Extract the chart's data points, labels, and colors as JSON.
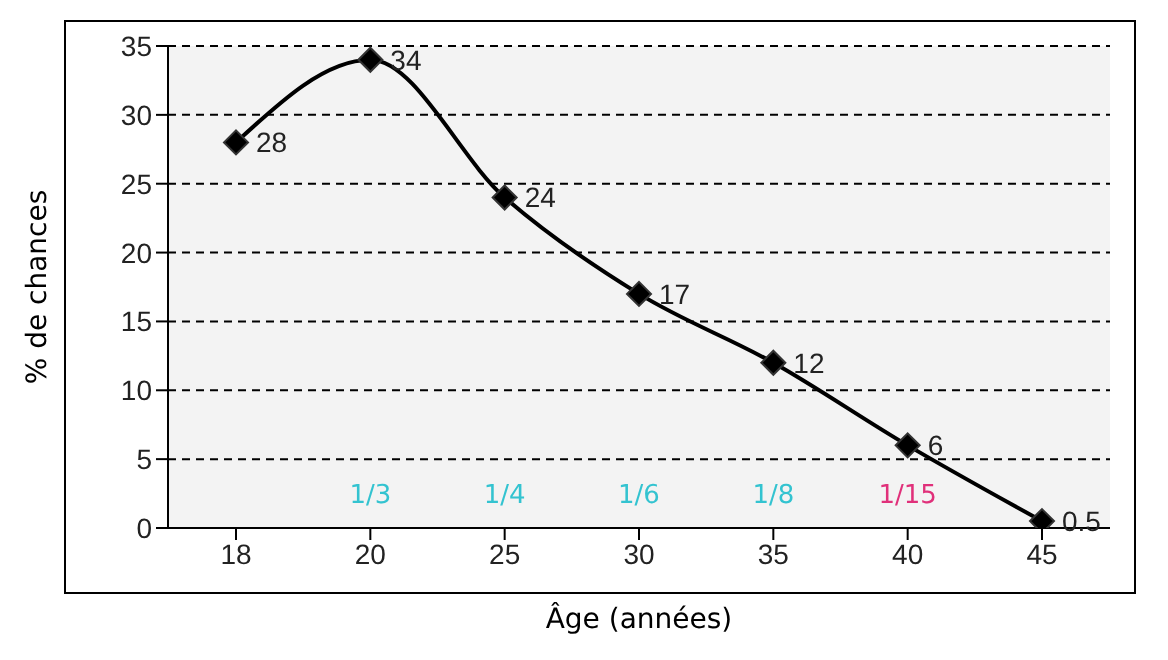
{
  "chart_data": {
    "type": "line",
    "xlabel": "Âge (années)",
    "ylabel": "% de chances",
    "categories": [
      "18",
      "20",
      "25",
      "30",
      "35",
      "40",
      "45"
    ],
    "series": [
      {
        "color": "#000000",
        "values": [
          28,
          34,
          24,
          17,
          12,
          6,
          0.5
        ]
      }
    ],
    "ylim": [
      0,
      35
    ],
    "yticks": [
      0,
      5,
      10,
      15,
      20,
      25,
      30,
      35
    ],
    "grid": "y",
    "marker": "diamond",
    "line_style": "solid",
    "data_labels": true,
    "legend": false,
    "annotations": [
      "1/3",
      "1/4",
      "1/6",
      "1/8",
      "1/15"
    ]
  }
}
